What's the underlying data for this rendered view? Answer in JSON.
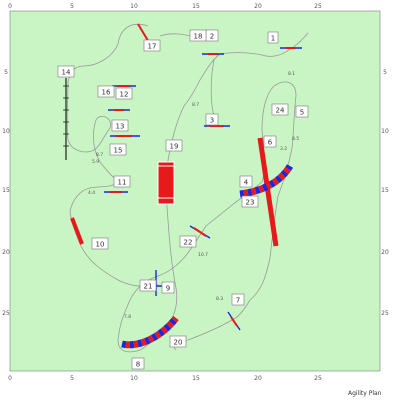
{
  "colors": {
    "field": "#c8f5c3",
    "path": "#9a9a9a",
    "grid_tick": "#666666",
    "pole_red": "#e8191b",
    "pole_blue": "#1c27e0",
    "tunnel_white": "#ffffff"
  },
  "axes": {
    "x_ticks": [
      "0",
      "5",
      "10",
      "15",
      "20",
      "25"
    ],
    "y_ticks": [
      "0",
      "5",
      "10",
      "15",
      "20",
      "25"
    ]
  },
  "obstacles": [
    {
      "label": "1",
      "kind": "jump"
    },
    {
      "label": "2",
      "kind": "jump"
    },
    {
      "label": "3",
      "kind": "jump"
    },
    {
      "label": "4",
      "kind": "tunnel"
    },
    {
      "label": "5",
      "kind": "number-only"
    },
    {
      "label": "6",
      "kind": "dogwalk"
    },
    {
      "label": "7",
      "kind": "jump"
    },
    {
      "label": "8",
      "kind": "tunnel"
    },
    {
      "label": "9",
      "kind": "jump"
    },
    {
      "label": "10",
      "kind": "seesaw"
    },
    {
      "label": "11",
      "kind": "jump"
    },
    {
      "label": "12",
      "kind": "jump"
    },
    {
      "label": "13",
      "kind": "jump"
    },
    {
      "label": "14",
      "kind": "weave"
    },
    {
      "label": "15",
      "kind": "number-only"
    },
    {
      "label": "16",
      "kind": "jump"
    },
    {
      "label": "17",
      "kind": "aframe"
    },
    {
      "label": "18",
      "kind": "number-only"
    },
    {
      "label": "19",
      "kind": "table"
    },
    {
      "label": "20",
      "kind": "number-only"
    },
    {
      "label": "21",
      "kind": "jump"
    },
    {
      "label": "22",
      "kind": "jump"
    },
    {
      "label": "23",
      "kind": "number-only"
    },
    {
      "label": "24",
      "kind": "number-only"
    }
  ],
  "distances": [
    "8.1",
    "8.5",
    "4.4",
    "5.9",
    "8.7",
    "8.7",
    "10.7",
    "7.8",
    "3.2",
    "8.3"
  ],
  "footer": "Agility Plan"
}
